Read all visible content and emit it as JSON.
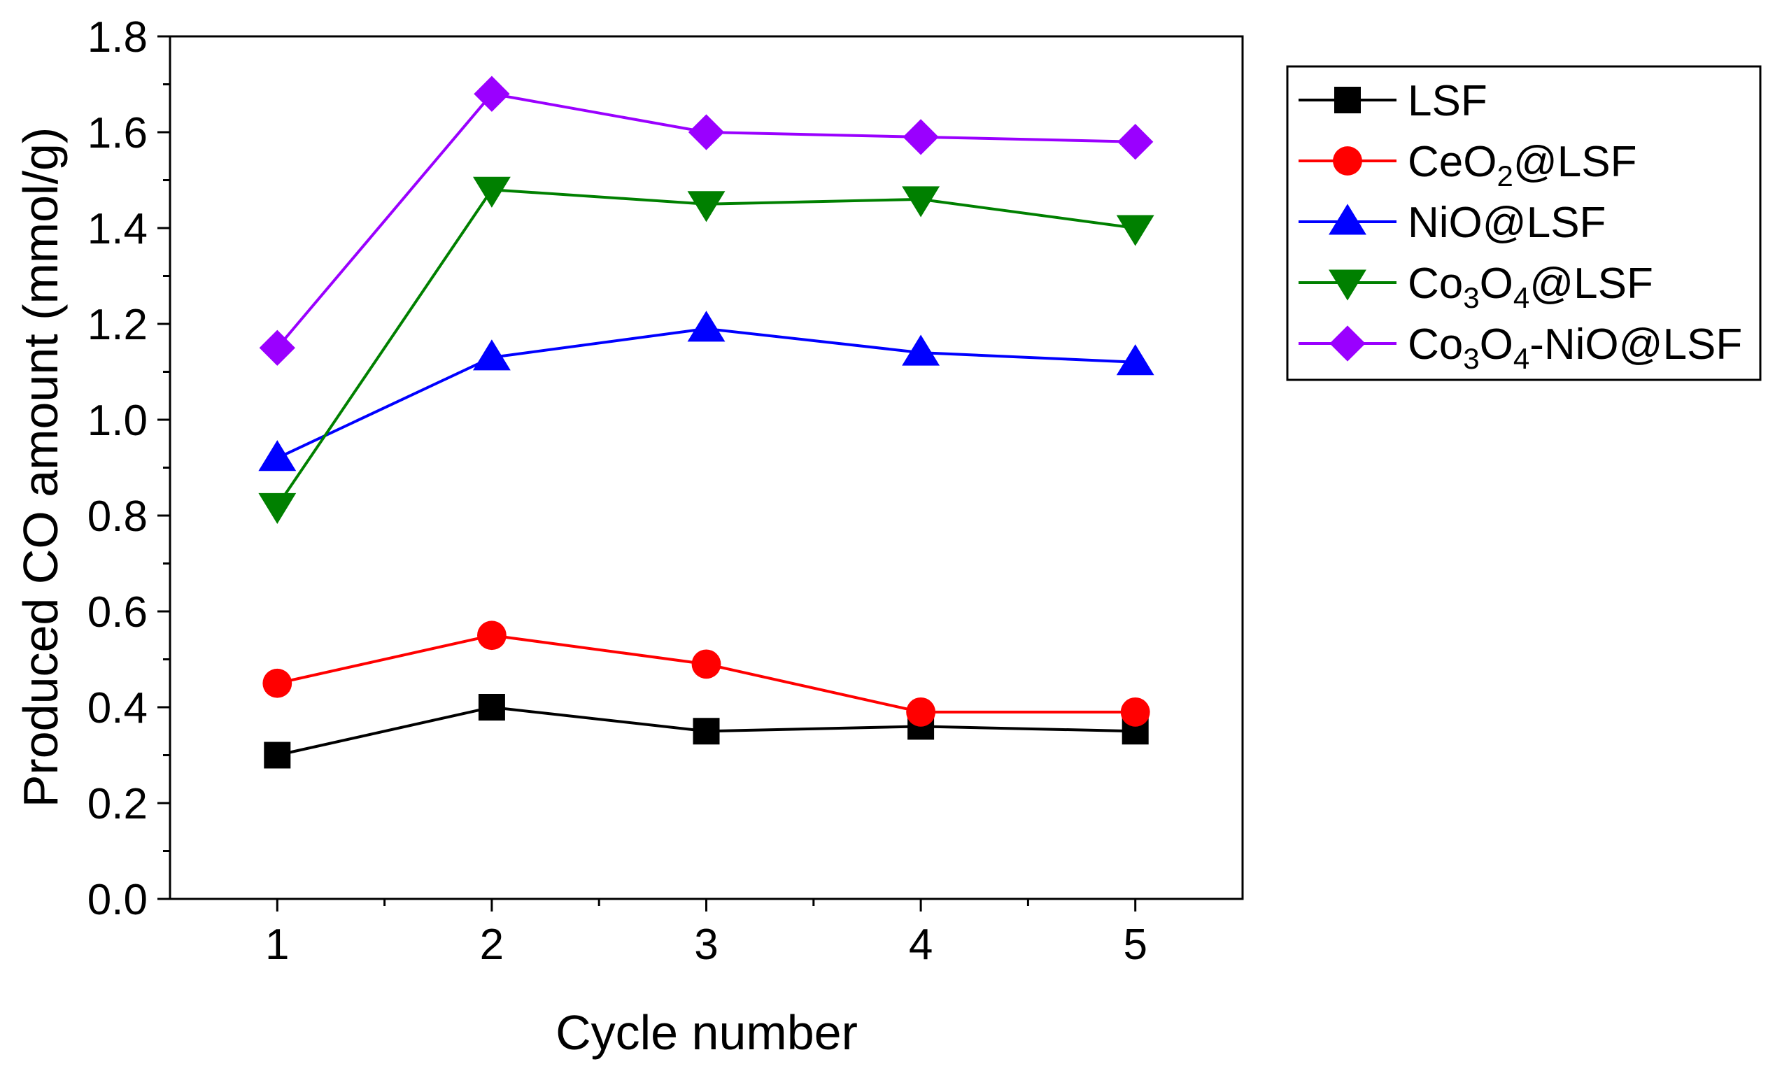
{
  "chart_data": {
    "type": "line",
    "title": "",
    "xlabel": "Cycle number",
    "ylabel": "Produced CO amount (mmol/g)",
    "x": [
      1,
      2,
      3,
      4,
      5
    ],
    "xticks": [
      "1",
      "2",
      "3",
      "4",
      "5"
    ],
    "xlim": [
      0.5,
      5.5
    ],
    "ylim": [
      0.0,
      1.8
    ],
    "yticks": [
      "0.0",
      "0.2",
      "0.4",
      "0.6",
      "0.8",
      "1.0",
      "1.2",
      "1.4",
      "1.6",
      "1.8"
    ],
    "grid": false,
    "legend_position": "outside-top-right",
    "series": [
      {
        "name": "LSF",
        "label_parts": [
          {
            "t": "LSF"
          }
        ],
        "marker": "square",
        "color": "#000000",
        "values": [
          0.3,
          0.4,
          0.35,
          0.36,
          0.35
        ]
      },
      {
        "name": "CeO2@LSF",
        "label_parts": [
          {
            "t": "CeO"
          },
          {
            "t": "2",
            "sub": true
          },
          {
            "t": "@LSF"
          }
        ],
        "marker": "circle",
        "color": "#ff0000",
        "values": [
          0.45,
          0.55,
          0.49,
          0.39,
          0.39
        ]
      },
      {
        "name": "NiO@LSF",
        "label_parts": [
          {
            "t": "NiO@LSF"
          }
        ],
        "marker": "triangle-up",
        "color": "#0000ff",
        "values": [
          0.92,
          1.13,
          1.19,
          1.14,
          1.12
        ]
      },
      {
        "name": "Co3O4@LSF",
        "label_parts": [
          {
            "t": "Co"
          },
          {
            "t": "3",
            "sub": true
          },
          {
            "t": "O"
          },
          {
            "t": "4",
            "sub": true
          },
          {
            "t": "@LSF"
          }
        ],
        "marker": "triangle-down",
        "color": "#008000",
        "values": [
          0.82,
          1.48,
          1.45,
          1.46,
          1.4
        ]
      },
      {
        "name": "Co3O4-NiO@LSF",
        "label_parts": [
          {
            "t": "Co"
          },
          {
            "t": "3",
            "sub": true
          },
          {
            "t": "O"
          },
          {
            "t": "4",
            "sub": true
          },
          {
            "t": "-NiO@LSF"
          }
        ],
        "marker": "diamond",
        "color": "#9a00ff",
        "values": [
          1.15,
          1.68,
          1.6,
          1.59,
          1.58
        ]
      }
    ]
  }
}
